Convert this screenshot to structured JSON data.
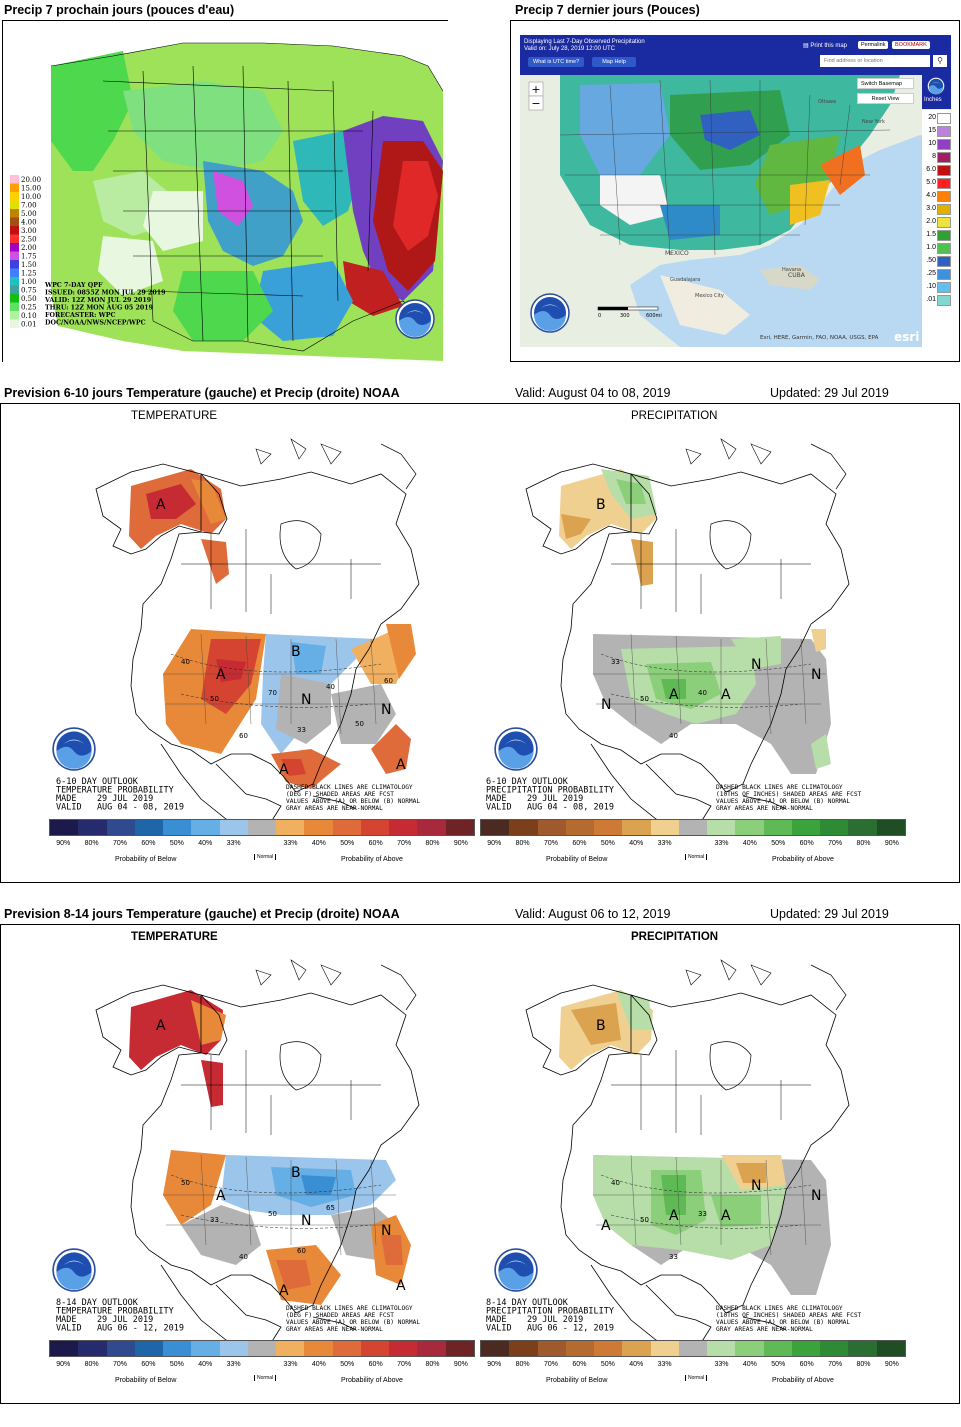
{
  "top_left": {
    "caption": "Precip 7 prochain jours (pouces d'eau)",
    "legend_values": [
      "20.00",
      "15.00",
      "10.00",
      "7.00",
      "5.00",
      "4.00",
      "3.00",
      "2.50",
      "2.00",
      "1.75",
      "1.50",
      "1.25",
      "1.00",
      "0.75",
      "0.50",
      "0.25",
      "0.10",
      "0.01"
    ],
    "legend_colors": [
      "#ffc0d8",
      "#ffa000",
      "#ffd000",
      "#e0e000",
      "#c08000",
      "#a05010",
      "#c01010",
      "#ff3030",
      "#a000c0",
      "#d050e0",
      "#4040e0",
      "#4080ff",
      "#20c0c0",
      "#40a0a0",
      "#10c010",
      "#60e060",
      "#b0f0a0",
      "#e8f8e0"
    ],
    "info_lines": [
      "WPC 7-DAY QPF",
      "ISSUED: 0855Z MON JUL 29 2019",
      "VALID: 12Z MON JUL 29 2019",
      "THRU: 12Z MON AUG 05 2019",
      "FORECASTER: WPC",
      "DOC/NOAA/NWS/NCEP/WPC"
    ],
    "logo_text": "NOAA"
  },
  "top_right": {
    "caption": "Precip 7 dernier jours (Pouces)",
    "header_line1": "Displaying Last 7-Day Observed Precipitation",
    "header_line2": "Valid on: July 28, 2019 12:00 UTC",
    "btn_utc": "What is UTC time?",
    "btn_help": "Map Help",
    "print": "Print this map",
    "permalink": "Permalink",
    "bookmark": "BOOKMARK",
    "search_placeholder": "Find address or location",
    "switch_basemap": "Switch Basemap",
    "reset_view": "Reset View",
    "units": "Inches",
    "zoom_in": "+",
    "zoom_out": "−",
    "scale_values": [
      "20",
      "15",
      "10",
      "8",
      "6.0",
      "5.0",
      "4.0",
      "3.0",
      "2.0",
      "1.5",
      "1.0",
      ".50",
      ".25",
      ".10",
      ".01"
    ],
    "scale_colors": [
      "#ffffff",
      "#c080e0",
      "#9040c0",
      "#a02060",
      "#c01010",
      "#ff2020",
      "#ff8000",
      "#e0b000",
      "#f0e040",
      "#30a030",
      "#50c050",
      "#3060c0",
      "#4090e0",
      "#60c0f0",
      "#80d8d0"
    ],
    "places": [
      "MEXICO",
      "Guadalajara",
      "Mexico City",
      "CUBA",
      "Havana",
      "Ottawa",
      "New York"
    ],
    "scale_bar": [
      "0",
      "300",
      "600mi"
    ],
    "attribution": "Esri, HERE, Garmin, FAO, NOAA, USGS, EPA",
    "esri": "esri",
    "logo_text": "NOAA"
  },
  "section1": {
    "caption": "Prevision 6-10 jours Temperature (gauche) et Precip (droite) NOAA",
    "valid": "Valid: August 04 to 08, 2019",
    "updated": "Updated: 29 Jul 2019",
    "temp_title": "TEMPERATURE",
    "precip_title": "PRECIPITATION",
    "temp_text": [
      "6-10 DAY OUTLOOK",
      "TEMPERATURE PROBABILITY",
      "MADE    29 JUL 2019",
      "VALID   AUG 04 - 08, 2019"
    ],
    "precip_text": [
      "6-10 DAY OUTLOOK",
      "PRECIPITATION PROBABILITY",
      "MADE    29 JUL 2019",
      "VALID   AUG 04 - 08, 2019"
    ],
    "temp_note": [
      "DASHED BLACK LINES ARE CLIMATOLOGY",
      "(DEG F) SHADED AREAS ARE FCST",
      "VALUES ABOVE (A) OR BELOW (B) NORMAL",
      "GRAY AREAS ARE NEAR-NORMAL"
    ],
    "precip_note": [
      "DASHED BLACK LINES ARE CLIMATOLOGY",
      "(10THS OF INCHES) SHADED AREAS ARE FCST",
      "VALUES ABOVE (A) OR BELOW (B) NORMAL",
      "GRAY AREAS ARE NEAR-NORMAL"
    ],
    "temp_labels": [
      "B",
      "N",
      "N",
      "A",
      "A",
      "A",
      "A"
    ],
    "precip_labels": [
      "B",
      "A",
      "A",
      "N",
      "N",
      "N"
    ],
    "temp_contours": [
      "40",
      "50",
      "60",
      "70",
      "33",
      "40",
      "50",
      "60"
    ],
    "precip_contours": [
      "33",
      "50",
      "40",
      "40"
    ]
  },
  "section2": {
    "caption": "Prevision 8-14 jours Temperature (gauche) et Precip (droite) NOAA",
    "valid": "Valid: August 06 to 12, 2019",
    "updated": "Updated: 29 Jul 2019",
    "temp_title": "TEMPERATURE",
    "precip_title": "PRECIPITATION",
    "temp_text": [
      "8-14 DAY OUTLOOK",
      "TEMPERATURE PROBABILITY",
      "MADE    29 JUL 2019",
      "VALID   AUG 06 - 12, 2019"
    ],
    "precip_text": [
      "8-14 DAY OUTLOOK",
      "PRECIPITATION PROBABILITY",
      "MADE    29 JUL 2019",
      "VALID   AUG 06 - 12, 2019"
    ],
    "temp_note": [
      "DASHED BLACK LINES ARE CLIMATOLOGY",
      "(DEG F) SHADED AREAS ARE FCST",
      "VALUES ABOVE (A) OR BELOW (B) NORMAL",
      "GRAY AREAS ARE NEAR-NORMAL"
    ],
    "precip_note": [
      "DASHED BLACK LINES ARE CLIMATOLOGY",
      "(10THS OF INCHES) SHADED AREAS ARE FCST",
      "VALUES ABOVE (A) OR BELOW (B) NORMAL",
      "GRAY AREAS ARE NEAR-NORMAL"
    ],
    "temp_labels": [
      "B",
      "N",
      "N",
      "A",
      "A",
      "A",
      "A"
    ],
    "precip_labels": [
      "B",
      "A",
      "A",
      "A",
      "N",
      "N"
    ],
    "temp_contours": [
      "50",
      "33",
      "40",
      "50",
      "60",
      "65"
    ],
    "precip_contours": [
      "40",
      "50",
      "33",
      "33"
    ]
  },
  "temp_legend": {
    "colors": [
      "#1c1a4a",
      "#262b6d",
      "#2f4a8e",
      "#1e66a8",
      "#3a8ed4",
      "#66aee6",
      "#9cc5ec",
      "#b3b3b3",
      "#f0b060",
      "#e8893a",
      "#df6b3a",
      "#d44430",
      "#c62a32",
      "#a8283e",
      "#6e2424"
    ],
    "ticks": [
      "90%",
      "80%",
      "70%",
      "60%",
      "50%",
      "40%",
      "33%",
      "",
      "33%",
      "40%",
      "50%",
      "60%",
      "70%",
      "80%",
      "90%"
    ],
    "below": "Probability of Below",
    "normal": "Normal",
    "above": "Probability of Above"
  },
  "precip_legend": {
    "colors": [
      "#4b2a22",
      "#7c3f1c",
      "#9e5a2c",
      "#b56a30",
      "#cc7a35",
      "#dba350",
      "#f0d090",
      "#b3b3b3",
      "#b7dea8",
      "#8ccf7a",
      "#5fba55",
      "#3aa33c",
      "#2f8a35",
      "#2a6e32",
      "#1f4d24"
    ],
    "ticks": [
      "90%",
      "80%",
      "70%",
      "60%",
      "50%",
      "40%",
      "33%",
      "",
      "33%",
      "40%",
      "50%",
      "60%",
      "70%",
      "80%",
      "90%"
    ],
    "below": "Probability of Below",
    "normal": "Normal",
    "above": "Probability of Above"
  },
  "noaa_logo": "NOAA"
}
